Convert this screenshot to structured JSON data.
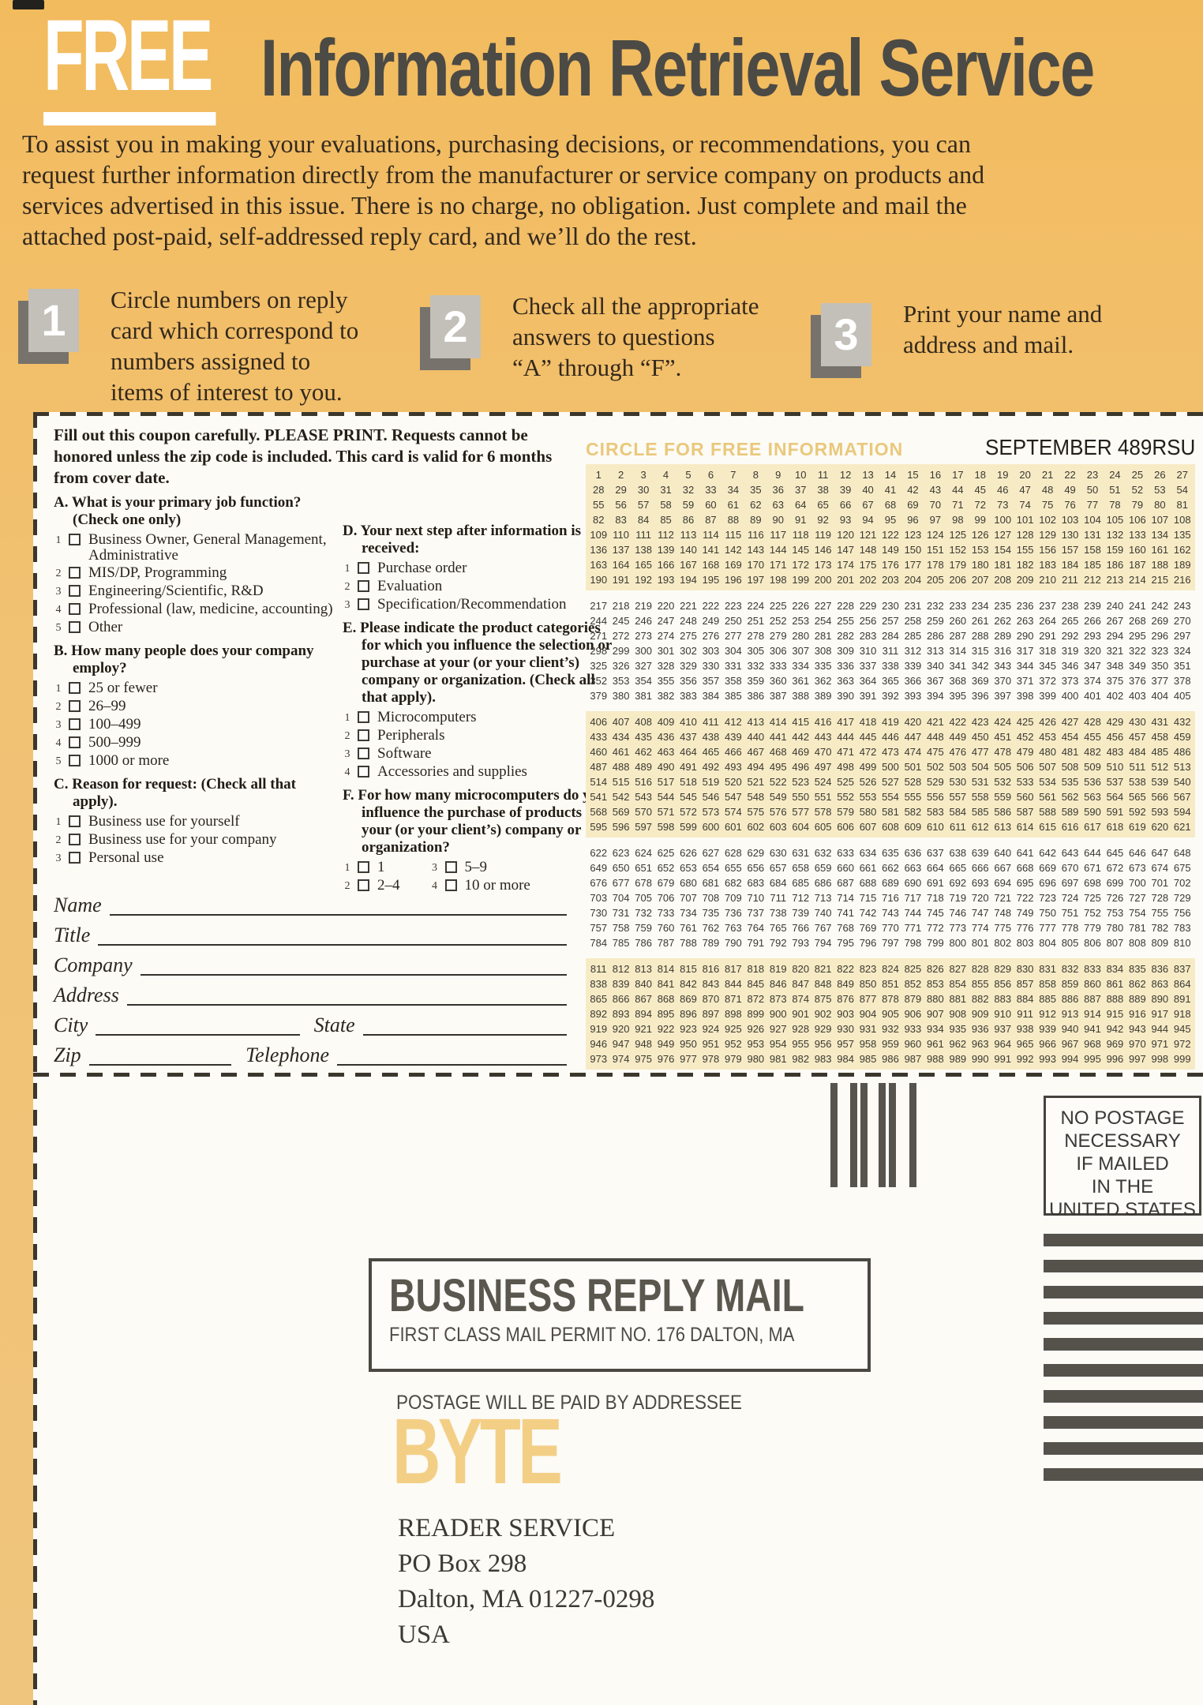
{
  "header": {
    "free": "FREE",
    "title": "Information Retrieval Service"
  },
  "intro_lines": [
    "To assist you in making your evaluations, purchasing decisions, or recommendations, you can",
    "request further information directly from the manufacturer or service company on products and",
    "services advertised in this issue. There is no charge, no obligation. Just complete and mail the",
    "attached post-paid, self-addressed reply card, and we’ll do the rest."
  ],
  "steps": [
    {
      "number": "1",
      "text": "Circle numbers on reply\ncard which correspond to\nnumbers assigned to\nitems of interest to you."
    },
    {
      "number": "2",
      "text": "Check all the appropriate\nanswers to questions\n“A” through “F”."
    },
    {
      "number": "3",
      "text": "Print your name and\naddress and mail."
    }
  ],
  "form": {
    "instructions": "Fill out this coupon carefully. PLEASE PRINT. Requests cannot be honored unless the zip code is included. This card is valid for 6 months from cover date.",
    "sections": [
      {
        "id": "A",
        "column": "left",
        "title": "A. What is your primary job function? (Check one only)",
        "items": [
          {
            "n": "1",
            "label": "Business Owner, General Management, Administrative"
          },
          {
            "n": "2",
            "label": "MIS/DP, Programming"
          },
          {
            "n": "3",
            "label": "Engineering/Scientific, R&D"
          },
          {
            "n": "4",
            "label": "Professional (law, medicine, accounting)"
          },
          {
            "n": "5",
            "label": "Other"
          }
        ]
      },
      {
        "id": "B",
        "column": "left",
        "title": "B. How many people does your company employ?",
        "items": [
          {
            "n": "1",
            "label": "25 or fewer"
          },
          {
            "n": "2",
            "label": "26–99"
          },
          {
            "n": "3",
            "label": "100–499"
          },
          {
            "n": "4",
            "label": "500–999"
          },
          {
            "n": "5",
            "label": "1000 or more"
          }
        ]
      },
      {
        "id": "C",
        "column": "left",
        "title": "C. Reason for request: (Check all that apply).",
        "items": [
          {
            "n": "1",
            "label": "Business use for yourself"
          },
          {
            "n": "2",
            "label": "Business use for your company"
          },
          {
            "n": "3",
            "label": "Personal use"
          }
        ]
      },
      {
        "id": "D",
        "column": "right",
        "title": "D. Your next step after information is received:",
        "items": [
          {
            "n": "1",
            "label": "Purchase order"
          },
          {
            "n": "2",
            "label": "Evaluation"
          },
          {
            "n": "3",
            "label": "Specification/Recommendation"
          }
        ]
      },
      {
        "id": "E",
        "column": "right",
        "title": "E. Please indicate the product categories for which you influence the selection or purchase at your (or your client’s) company or organization. (Check all that apply).",
        "items": [
          {
            "n": "1",
            "label": "Microcomputers"
          },
          {
            "n": "2",
            "label": "Peripherals"
          },
          {
            "n": "3",
            "label": "Software"
          },
          {
            "n": "4",
            "label": "Accessories and supplies"
          }
        ]
      },
      {
        "id": "F",
        "column": "right",
        "two_col": true,
        "title": "F. For how many microcomputers do you influence the purchase of products at your (or your client’s) company or organization?",
        "items": [
          {
            "n": "1",
            "label": "1"
          },
          {
            "n": "2",
            "label": "2–4"
          },
          {
            "n": "3",
            "label": "5–9"
          },
          {
            "n": "4",
            "label": "10 or more"
          }
        ]
      }
    ],
    "field_rows": [
      [
        "Name"
      ],
      [
        "Title"
      ],
      [
        "Company"
      ],
      [
        "Address"
      ],
      [
        "City",
        "State"
      ],
      [
        "Zip",
        "Telephone"
      ]
    ]
  },
  "grid": {
    "title": "CIRCLE FOR FREE INFORMATION",
    "issue": "SEPTEMBER 489RSU",
    "columns": 27,
    "first": 1,
    "last": 999,
    "bands": [
      {
        "start": 1,
        "end": 216,
        "shaded": true
      },
      {
        "start": 217,
        "end": 405,
        "shaded": false
      },
      {
        "start": 406,
        "end": 621,
        "shaded": true
      },
      {
        "start": 622,
        "end": 810,
        "shaded": false
      },
      {
        "start": 811,
        "end": 999,
        "shaded": true
      }
    ]
  },
  "mail": {
    "no_postage": "NO POSTAGE\nNECESSARY\nIF MAILED\nIN THE\nUNITED STATES",
    "brm_title": "BUSINESS REPLY MAIL",
    "brm_permit": "FIRST CLASS MAIL PERMIT NO. 176 DALTON, MA",
    "postage_paid": "POSTAGE WILL BE PAID BY ADDRESSEE",
    "logo": "BYTE",
    "address_lines": [
      "READER SERVICE",
      "PO Box 298",
      "Dalton, MA 01227-0298",
      "USA"
    ],
    "stripe_count": 10,
    "bar_count": 6
  },
  "colors": {
    "paper": "#f1bc64",
    "card": "#fcfbf6",
    "band": "#f7ebc6",
    "accent_tan": "#eac87c",
    "ink": "#2c261c",
    "logo_yellow": "#f3cf86"
  }
}
